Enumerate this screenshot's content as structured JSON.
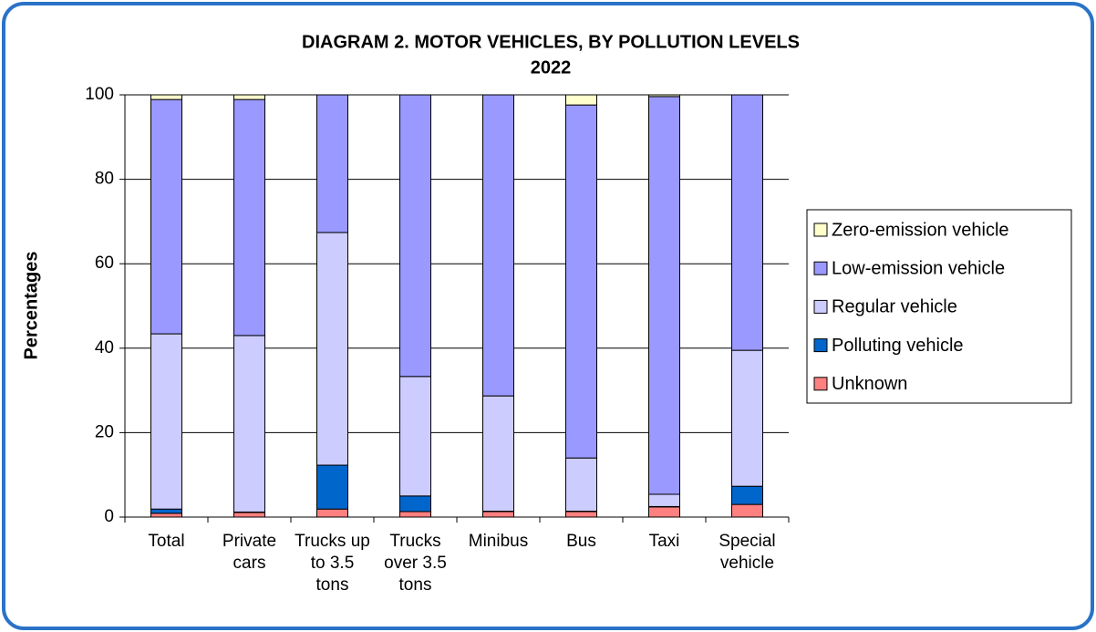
{
  "chart_data": {
    "type": "stacked_bar",
    "title": "DIAGRAM 2. MOTOR VEHICLES, BY POLLUTION LEVELS",
    "subtitle": "2022",
    "y_label": "Percentages",
    "categories": [
      "Total",
      "Private cars",
      "Trucks up to 3.5 tons",
      "Trucks over 3.5 tons",
      "Minibus",
      "Bus",
      "Taxi",
      "Special vehicle"
    ],
    "series": [
      {
        "name": "Unknown",
        "color": "#ff8080",
        "values": [
          0.9,
          1.1,
          1.9,
          1.3,
          1.3,
          1.3,
          2.4,
          3.0
        ]
      },
      {
        "name": "Polluting vehicle",
        "color": "#0066cc",
        "values": [
          1.0,
          0.1,
          10.4,
          3.7,
          0.1,
          0.1,
          0.1,
          4.3
        ]
      },
      {
        "name": "Regular vehicle",
        "color": "#ccccff",
        "values": [
          41.5,
          41.8,
          55.1,
          28.3,
          27.3,
          12.6,
          2.9,
          32.2
        ]
      },
      {
        "name": "Low-emission vehicle",
        "color": "#9999ff",
        "values": [
          55.5,
          55.9,
          32.6,
          66.7,
          71.3,
          83.6,
          94.2,
          60.5
        ]
      },
      {
        "name": "Zero-emission vehicle",
        "color": "#ffffcc",
        "values": [
          1.1,
          1.1,
          0,
          0,
          0,
          2.4,
          0.4,
          0
        ]
      }
    ],
    "ylim": [
      0,
      100
    ],
    "yticks": [
      0,
      20,
      40,
      60,
      80,
      100
    ],
    "grid": true,
    "legend": "right"
  }
}
